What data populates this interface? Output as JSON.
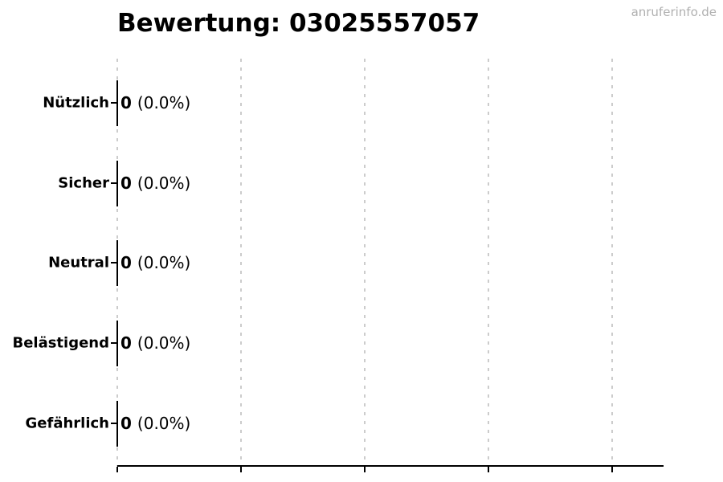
{
  "watermark": {
    "text": "anruferinfo.de",
    "color": "#b0b0b0"
  },
  "chart_data": {
    "type": "bar",
    "orientation": "horizontal",
    "title": "Bewertung: 03025557057",
    "categories": [
      "Nützlich",
      "Sicher",
      "Neutral",
      "Belästigend",
      "Gefährlich"
    ],
    "values": [
      0,
      0,
      0,
      0,
      0
    ],
    "percent_labels": [
      "(0.0%)",
      "(0.0%)",
      "(0.0%)",
      "(0.0%)",
      "(0.0%)"
    ],
    "bar_value_format": "count percent",
    "xlabel": "",
    "ylabel": "",
    "xlim": [
      0,
      4.4
    ],
    "x_ticks": [
      0,
      1,
      2,
      3,
      4
    ],
    "x_tick_labels": [
      "",
      "",
      "",
      "",
      ""
    ],
    "legend": "none",
    "grid": {
      "axis": "x",
      "style": "dashed",
      "color": "#cccccc"
    },
    "colors": {
      "background": "#ffffff",
      "text": "#000000",
      "bar": "#000000",
      "title": "#000000"
    }
  }
}
